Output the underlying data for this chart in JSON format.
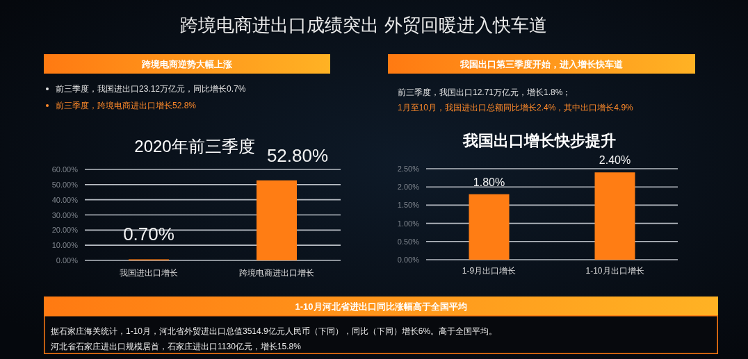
{
  "chart_data": [
    {
      "type": "other",
      "title": "跨境电商进出口成绩突出 外贸回暖进入快车道"
    },
    {
      "type": "bar",
      "title": "2020年前三季度",
      "annotations": [
        "跨境电商逆势大幅上涨",
        "前三季度，我国进出口23.12万亿元，同比增长0.7%",
        "前三季度，跨境电商进出口增长52.8%"
      ],
      "categories": [
        "我国进出口增长",
        "跨境电商进出口增长"
      ],
      "values": [
        0.7,
        52.8
      ],
      "color": "#ff7d14",
      "value_labels": [
        "0.70%",
        "52.80%"
      ],
      "ylim": [
        0,
        60
      ],
      "yticks": [
        {
          "value": 0,
          "label": "0.00%"
        },
        {
          "value": 10,
          "label": "10.00%"
        },
        {
          "value": 20,
          "label": "20.00%"
        },
        {
          "value": 30,
          "label": "30.00%"
        },
        {
          "value": 40,
          "label": "40.00%"
        },
        {
          "value": 50,
          "label": "50.00%"
        },
        {
          "value": 60,
          "label": "60.00%"
        }
      ],
      "grid": "y"
    },
    {
      "type": "bar",
      "title": "我国出口增长快步提升",
      "annotations": [
        "我国出口第三季度开始，进入增长快车道",
        "前三季度，我国出口12.71万亿元，增长1.8%；",
        "1月至10月，我国进出口总额同比增长2.4%，其中出口增长4.9%"
      ],
      "categories": [
        "1-9月出口增长",
        "1-10月出口增长"
      ],
      "values": [
        1.8,
        2.4
      ],
      "color": "#ff7d14",
      "value_labels": [
        "1.80%",
        "2.40%"
      ],
      "ylim": [
        0,
        2.5
      ],
      "yticks": [
        {
          "value": 0,
          "label": "0.00%"
        },
        {
          "value": 0.5,
          "label": "0.50%"
        },
        {
          "value": 1,
          "label": "1.00%"
        },
        {
          "value": 1.5,
          "label": "1.50%"
        },
        {
          "value": 2,
          "label": "2.00%"
        },
        {
          "value": 2.5,
          "label": "2.50%"
        }
      ],
      "grid": "y"
    },
    {
      "type": "other",
      "title": "1-10月河北省进出口同比涨幅高于全国平均",
      "annotations": [
        "据石家庄海关统计，1-10月，河北省外贸进出口总值3514.9亿元人民币（下同），同比（下同）增长6%。高于全国平均。",
        "河北省石家庄进出口规模居首，石家庄进出口1130亿元，增长15.8%"
      ]
    }
  ]
}
